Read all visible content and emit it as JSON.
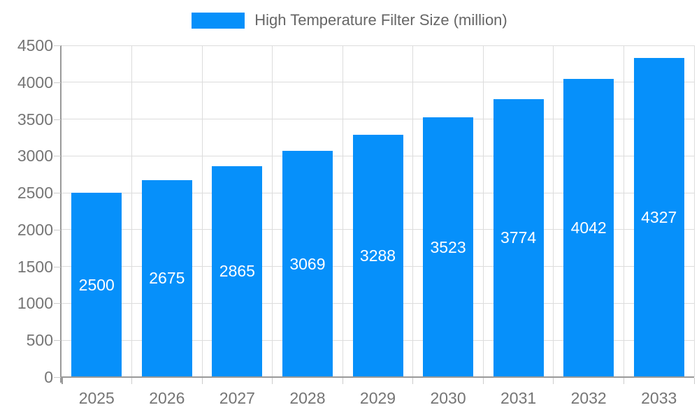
{
  "chart_data": {
    "type": "bar",
    "title": "High Temperature Filter Size (million)",
    "legend": [
      "High Temperature Filter Size (million)"
    ],
    "legend_position": "top",
    "categories": [
      "2025",
      "2026",
      "2027",
      "2028",
      "2029",
      "2030",
      "2031",
      "2032",
      "2033"
    ],
    "series": [
      {
        "name": "High Temperature Filter Size (million)",
        "values": [
          2500,
          2675,
          2865,
          3069,
          3288,
          3523,
          3774,
          4042,
          4327
        ]
      }
    ],
    "values": [
      2500,
      2675,
      2865,
      3069,
      3288,
      3523,
      3774,
      4042,
      4327
    ],
    "data_labels": [
      "2500",
      "2675",
      "2865",
      "3069",
      "3288",
      "3523",
      "3774",
      "4042",
      "4327"
    ],
    "xlabel": "",
    "ylabel": "",
    "ylim": [
      0,
      4500
    ],
    "ytick_step": 500,
    "ytick_labels": [
      "0",
      "500",
      "1000",
      "1500",
      "2000",
      "2500",
      "3000",
      "3500",
      "4000",
      "4500"
    ],
    "grid": true,
    "colors": {
      "bar": "#0690fa",
      "bar_value_text": "#ffffff",
      "axis_text": "#757575",
      "legend_text": "#666666",
      "gridline": "#dcdcdc",
      "axis_line": "#999999",
      "tick": "#cccccc"
    }
  }
}
